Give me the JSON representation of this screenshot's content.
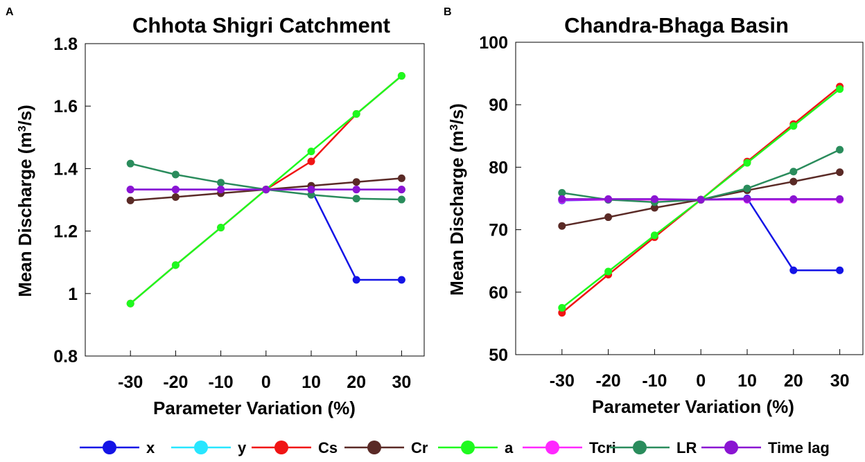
{
  "chart_data": [
    {
      "type": "line",
      "panel": "A",
      "title": "Chhota Shigri Catchment",
      "xlabel": "Parameter Variation (%)",
      "ylabel": "Mean Discharge (m³/s)",
      "x": [
        -30,
        -20,
        -10,
        0,
        10,
        20,
        30
      ],
      "x_tick_labels": [
        "-30",
        "-20",
        "-10",
        "0",
        "10",
        "20",
        "30"
      ],
      "xlim": [
        -40,
        35
      ],
      "ylim": [
        0.8,
        1.8
      ],
      "y_ticks": [
        0.8,
        1.0,
        1.2,
        1.4,
        1.6,
        1.8
      ],
      "y_tick_labels": [
        "0.8",
        "1",
        "1.2",
        "1.4",
        "1.6",
        "1.8"
      ],
      "series": [
        {
          "name": "x",
          "values": [
            1.333,
            1.333,
            1.333,
            1.333,
            1.333,
            1.044,
            1.044
          ]
        },
        {
          "name": "y",
          "values": [
            1.333,
            1.333,
            1.333,
            1.333,
            1.333,
            1.333,
            1.333
          ]
        },
        {
          "name": "Tcri",
          "values": [
            1.333,
            1.333,
            1.333,
            1.333,
            1.333,
            1.333,
            1.333
          ]
        },
        {
          "name": "Cr",
          "values": [
            1.298,
            1.309,
            1.321,
            1.333,
            1.345,
            1.357,
            1.369
          ]
        },
        {
          "name": "LR",
          "values": [
            1.416,
            1.381,
            1.355,
            1.333,
            1.316,
            1.304,
            1.301
          ]
        },
        {
          "name": "Cs",
          "values": [
            0.968,
            1.091,
            1.211,
            1.333,
            1.423,
            1.575,
            1.697
          ]
        },
        {
          "name": "a",
          "values": [
            0.968,
            1.091,
            1.211,
            1.333,
            1.455,
            1.575,
            1.697
          ]
        },
        {
          "name": "Time lag",
          "values": [
            1.333,
            1.333,
            1.333,
            1.333,
            1.333,
            1.333,
            1.333
          ]
        }
      ]
    },
    {
      "type": "line",
      "panel": "B",
      "title": "Chandra-Bhaga Basin",
      "xlabel": "Parameter Variation (%)",
      "ylabel": "Mean Discharge (m³/s)",
      "x": [
        -30,
        -20,
        -10,
        0,
        10,
        20,
        30
      ],
      "x_tick_labels": [
        "-30",
        "-20",
        "-10",
        "0",
        "10",
        "20",
        "30"
      ],
      "xlim": [
        -40,
        35
      ],
      "ylim": [
        50,
        100
      ],
      "y_ticks": [
        50,
        60,
        70,
        80,
        90,
        100
      ],
      "y_tick_labels": [
        "50",
        "60",
        "70",
        "80",
        "90",
        "100"
      ],
      "series": [
        {
          "name": "x",
          "values": [
            74.7,
            74.8,
            74.8,
            74.8,
            75.0,
            63.5,
            63.5
          ]
        },
        {
          "name": "y",
          "values": [
            74.8,
            74.8,
            74.8,
            74.8,
            74.8,
            74.8,
            74.8
          ]
        },
        {
          "name": "Tcri",
          "values": [
            74.8,
            74.8,
            74.8,
            74.8,
            74.8,
            74.8,
            74.8
          ]
        },
        {
          "name": "Cr",
          "values": [
            70.6,
            72.0,
            73.5,
            74.8,
            76.3,
            77.7,
            79.2
          ]
        },
        {
          "name": "LR",
          "values": [
            75.9,
            74.8,
            74.4,
            74.8,
            76.6,
            79.3,
            82.8
          ]
        },
        {
          "name": "Cs",
          "values": [
            56.7,
            62.8,
            68.8,
            74.8,
            80.9,
            86.9,
            92.9
          ]
        },
        {
          "name": "a",
          "values": [
            57.5,
            63.3,
            69.1,
            74.8,
            80.7,
            86.6,
            92.5
          ]
        },
        {
          "name": "Time lag",
          "values": [
            74.9,
            74.9,
            74.9,
            74.8,
            74.9,
            74.9,
            74.9
          ]
        }
      ]
    }
  ],
  "series_colors": {
    "x": "#1414e6",
    "y": "#28e6ff",
    "Cs": "#f01414",
    "Cr": "#5a2a26",
    "a": "#1efa1e",
    "Tcri": "#ff28ff",
    "LR": "#2a8c5c",
    "Time lag": "#8a14d2"
  },
  "legend": [
    "x",
    "y",
    "Cs",
    "Cr",
    "a",
    "Tcri",
    "LR",
    "Time lag"
  ]
}
